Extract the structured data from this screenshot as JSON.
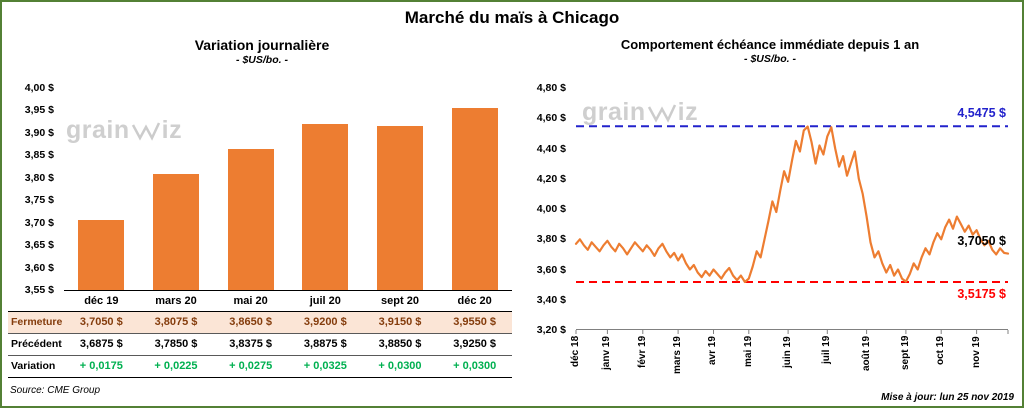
{
  "page": {
    "title": "Marché du maïs à Chicago",
    "source_note": "Source: CME Group",
    "updated_note": "Mise à jour: lun 25 nov 2019",
    "watermark": {
      "prefix": "grain",
      "suffix": "iz"
    }
  },
  "colors": {
    "accent_orange": "#ED7D31",
    "border_green": "#538135",
    "fermeture_bg": "#FBE5D6",
    "fermeture_text": "#843C0C",
    "variation_green": "#00B050",
    "ref_high_blue": "#2222CC",
    "ref_low_red": "#FF0000",
    "watermark_gray": "#CFCFCF"
  },
  "chart_data": [
    {
      "type": "bar",
      "title": "Variation journalière",
      "subtitle": "- $US/bo. -",
      "categories": [
        "déc 19",
        "mars 20",
        "mai 20",
        "juil 20",
        "sept 20",
        "déc 20"
      ],
      "values": [
        3.705,
        3.8075,
        3.865,
        3.92,
        3.915,
        3.955
      ],
      "ylim": [
        3.55,
        4.0
      ],
      "ytick_step": 0.05,
      "ytick_labels": [
        "4,00 $",
        "3,95 $",
        "3,90 $",
        "3,85 $",
        "3,80 $",
        "3,75 $",
        "3,70 $",
        "3,65 $",
        "3,60 $",
        "3,55 $"
      ],
      "legend": "none",
      "grid": false,
      "table": {
        "rows": [
          {
            "label": "Fermeture",
            "values": [
              "3,7050 $",
              "3,8075 $",
              "3,8650 $",
              "3,9200 $",
              "3,9150 $",
              "3,9550 $"
            ]
          },
          {
            "label": "Précédent",
            "values": [
              "3,6875 $",
              "3,7850 $",
              "3,8375 $",
              "3,8875 $",
              "3,8850 $",
              "3,9250 $"
            ]
          },
          {
            "label": "Variation",
            "values": [
              "+ 0,0175",
              "+ 0,0225",
              "+ 0,0275",
              "+ 0,0325",
              "+ 0,0300",
              "+ 0,0300"
            ]
          }
        ]
      }
    },
    {
      "type": "line",
      "title": "Comportement échéance immédiate depuis 1 an",
      "subtitle": "- $US/bo. -",
      "x_labels": [
        "déc 18",
        "janv 19",
        "févr 19",
        "mars 19",
        "avr 19",
        "mai 19",
        "juin 19",
        "juil 19",
        "août 19",
        "sept 19",
        "oct 19",
        "nov 19"
      ],
      "x_tick_indices": [
        0,
        8,
        17,
        26,
        35,
        44,
        54,
        64,
        74,
        84,
        93,
        102
      ],
      "ylim": [
        3.2,
        4.8
      ],
      "ytick_labels": [
        "4,80 $",
        "4,60 $",
        "4,40 $",
        "4,20 $",
        "4,00 $",
        "3,80 $",
        "3,60 $",
        "3,40 $",
        "3,20 $"
      ],
      "grid": false,
      "values": [
        3.77,
        3.8,
        3.76,
        3.73,
        3.78,
        3.75,
        3.72,
        3.76,
        3.79,
        3.75,
        3.72,
        3.77,
        3.74,
        3.7,
        3.74,
        3.78,
        3.75,
        3.72,
        3.76,
        3.73,
        3.69,
        3.74,
        3.77,
        3.72,
        3.68,
        3.71,
        3.66,
        3.7,
        3.64,
        3.6,
        3.63,
        3.58,
        3.55,
        3.59,
        3.56,
        3.6,
        3.57,
        3.54,
        3.58,
        3.61,
        3.56,
        3.53,
        3.56,
        3.5175,
        3.54,
        3.62,
        3.72,
        3.68,
        3.8,
        3.92,
        4.05,
        3.98,
        4.12,
        4.25,
        4.18,
        4.32,
        4.45,
        4.38,
        4.52,
        4.545,
        4.44,
        4.3,
        4.42,
        4.36,
        4.48,
        4.54,
        4.4,
        4.28,
        4.35,
        4.22,
        4.3,
        4.38,
        4.2,
        4.1,
        3.95,
        3.78,
        3.68,
        3.72,
        3.64,
        3.58,
        3.63,
        3.56,
        3.6,
        3.54,
        3.52,
        3.57,
        3.64,
        3.6,
        3.68,
        3.74,
        3.7,
        3.78,
        3.84,
        3.8,
        3.88,
        3.93,
        3.87,
        3.95,
        3.9,
        3.85,
        3.89,
        3.83,
        3.86,
        3.8,
        3.76,
        3.79,
        3.73,
        3.7,
        3.74,
        3.71,
        3.705
      ],
      "annotations": [
        {
          "label": "4,5475 $",
          "value": 4.5475,
          "color": "#2222CC",
          "style": "dashed",
          "label_position": "above"
        },
        {
          "label": "3,7050 $",
          "value": 3.705,
          "color": "#000000",
          "style": "none",
          "label_position": "above"
        },
        {
          "label": "3,5175 $",
          "value": 3.5175,
          "color": "#FF0000",
          "style": "dashed",
          "label_position": "below"
        }
      ]
    }
  ]
}
